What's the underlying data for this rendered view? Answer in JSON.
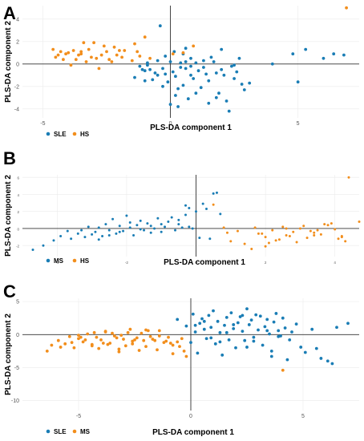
{
  "colors": {
    "blue": "#1a7db5",
    "orange": "#f28e1c"
  },
  "chart_data": [
    {
      "type": "scatter",
      "panel_label": "A",
      "xlabel": "PLS-DA component 1",
      "ylabel": "PLS-DA component 2",
      "xlim": [
        -5.8,
        7.4
      ],
      "ylim": [
        -4.8,
        5.2
      ],
      "xticks": [
        -5,
        0,
        5
      ],
      "yticks": [
        -4,
        -2,
        0,
        2,
        4
      ],
      "grid": true,
      "legend_position": "bottom-left",
      "series": [
        {
          "name": "SLE",
          "color": "#1a7db5",
          "x": [
            -1.4,
            -1.2,
            -1.0,
            -0.8,
            -0.7,
            -0.6,
            -0.5,
            -0.5,
            -0.4,
            -0.3,
            -0.2,
            -0.1,
            0.0,
            0.1,
            0.15,
            0.2,
            0.3,
            0.4,
            0.5,
            0.6,
            0.7,
            0.8,
            0.9,
            1.0,
            1.1,
            1.2,
            1.3,
            1.4,
            1.5,
            1.6,
            1.7,
            1.8,
            1.9,
            2.0,
            2.1,
            2.2,
            2.3,
            2.4,
            2.5,
            2.6,
            2.7,
            2.8,
            1.0,
            1.5,
            2.0,
            2.5,
            0.5,
            0.3,
            -0.2,
            0.4,
            0.6,
            0.8,
            -1.0,
            -0.9,
            -1.1,
            3.1,
            4.0,
            4.8,
            5.0,
            5.3,
            6.0,
            6.4,
            6.8,
            -0.9,
            0.6,
            1.8,
            -0.3,
            0.2,
            1.3,
            2.9,
            0.0,
            0.8
          ],
          "y": [
            -1.2,
            -0.2,
            -0.6,
            -0.5,
            -1.4,
            -0.8,
            0.3,
            -1.0,
            3.4,
            -0.4,
            0.7,
            -1.6,
            0.2,
            -0.7,
            1.1,
            -1.1,
            -3.8,
            -0.3,
            -1.9,
            0.2,
            -3.1,
            0.5,
            -1.3,
            0.1,
            -0.6,
            -2.1,
            0.3,
            -0.9,
            -1.5,
            0.6,
            0.2,
            -0.8,
            -2.6,
            1.3,
            -1.0,
            -3.3,
            -4.2,
            -0.2,
            -0.1,
            -0.7,
            0.5,
            -1.8,
            -2.6,
            -3.5,
            -0.5,
            -1.3,
            0.9,
            -2.2,
            -0.9,
            0.1,
            1.4,
            -0.2,
            -1.5,
            -0.1,
            -0.5,
            -1.7,
            0.0,
            0.9,
            -1.6,
            1.3,
            0.5,
            0.9,
            0.8,
            0.1,
            -0.4,
            -3.0,
            -2.0,
            -2.8,
            -0.3,
            -2.3,
            -3.6,
            -1.0
          ]
        },
        {
          "name": "HS",
          "color": "#f28e1c",
          "x": [
            -4.6,
            -4.5,
            -4.3,
            -4.2,
            -4.1,
            -4.0,
            -3.9,
            -3.8,
            -3.7,
            -3.6,
            -3.5,
            -3.4,
            -3.3,
            -3.2,
            -3.1,
            -3.0,
            -2.9,
            -2.8,
            -2.7,
            -2.6,
            -2.5,
            -2.4,
            -2.3,
            -2.2,
            -2.1,
            -2.0,
            -1.9,
            -1.8,
            -1.5,
            -1.4,
            -1.3,
            -1.2,
            -1.0,
            0.1,
            0.5,
            0.9,
            -0.8,
            -3.5,
            -4.4,
            6.9
          ],
          "y": [
            1.3,
            0.6,
            1.1,
            0.4,
            0.9,
            1.0,
            -0.1,
            1.2,
            0.4,
            0.8,
            1.1,
            1.9,
            0.2,
            1.3,
            0.6,
            1.9,
            0.5,
            -0.4,
            0.8,
            1.6,
            1.1,
            0.4,
            0.2,
            1.5,
            0.8,
            1.2,
            0.6,
            1.2,
            0.3,
            1.8,
            1.1,
            0.7,
            2.4,
            0.9,
            1.0,
            1.6,
            0.5,
            0.9,
            0.8,
            5.0
          ]
        }
      ]
    },
    {
      "type": "scatter",
      "panel_label": "B",
      "xlabel": "PLS-DA component 1",
      "ylabel": "PLS-DA component 2",
      "xlim": [
        -5.0,
        4.7
      ],
      "ylim": [
        -3.3,
        6.3
      ],
      "xticks": [
        -4,
        -2,
        0,
        2,
        4
      ],
      "yticks": [
        -2,
        0,
        2,
        4,
        6
      ],
      "grid": true,
      "legend_position": "bottom-left",
      "series": [
        {
          "name": "MS",
          "color": "#1a7db5",
          "x": [
            -4.7,
            -4.4,
            -4.1,
            -3.9,
            -3.7,
            -3.6,
            -3.4,
            -3.3,
            -3.2,
            -3.1,
            -3.0,
            -2.9,
            -2.8,
            -2.7,
            -2.6,
            -2.5,
            -2.4,
            -2.3,
            -2.2,
            -2.1,
            -2.0,
            -1.9,
            -1.8,
            -1.7,
            -1.6,
            -1.5,
            -1.4,
            -1.3,
            -1.2,
            -1.1,
            -1.0,
            -0.9,
            -0.8,
            -0.7,
            -0.6,
            -0.5,
            -0.4,
            -0.3,
            -0.2,
            -0.1,
            0.0,
            0.1,
            0.2,
            0.3,
            0.4,
            0.5,
            0.6,
            0.7,
            -0.5,
            -0.3,
            -2.2,
            -1.9,
            -1.0,
            -0.2,
            -2.8,
            -2.5,
            -1.6,
            -1.3
          ],
          "y": [
            -2.5,
            -2.0,
            -1.4,
            -0.9,
            -0.3,
            -1.2,
            -0.6,
            -0.2,
            -1.0,
            0.2,
            -0.7,
            -0.4,
            0.1,
            -0.9,
            0.5,
            -0.2,
            1.1,
            -0.6,
            0.3,
            -0.3,
            1.5,
            0.1,
            -0.8,
            0.4,
            0.9,
            -0.2,
            0.6,
            -0.5,
            0.0,
            1.2,
            -0.4,
            0.2,
            0.8,
            1.3,
            -0.2,
            0.5,
            0.1,
            1.6,
            2.4,
            0.0,
            2.0,
            -1.1,
            2.9,
            2.3,
            -1.2,
            4.1,
            4.2,
            1.7,
            1.0,
            2.7,
            -0.4,
            0.7,
            0.5,
            0.2,
            -1.3,
            -0.8,
            -0.1,
            0.3
          ]
        },
        {
          "name": "HS",
          "color": "#f28e1c",
          "x": [
            0.5,
            0.8,
            1.0,
            1.2,
            1.4,
            1.6,
            1.8,
            2.0,
            2.2,
            2.4,
            2.6,
            2.8,
            3.0,
            3.2,
            3.4,
            3.6,
            3.8,
            4.0,
            4.2,
            4.4,
            2.1,
            2.5,
            2.9,
            3.3,
            3.7,
            4.1,
            1.9,
            2.3,
            2.7,
            3.1,
            3.5,
            3.9,
            4.3,
            2.0,
            2.6,
            3.4,
            4.2,
            4.7,
            0.9,
            1.7
          ],
          "y": [
            2.8,
            0.1,
            -1.5,
            -0.3,
            -1.8,
            -2.4,
            -0.6,
            -1.0,
            -0.2,
            -1.3,
            -0.8,
            -0.4,
            0.0,
            -1.1,
            -0.5,
            -0.7,
            0.4,
            -0.1,
            -0.9,
            6.0,
            -1.7,
            0.2,
            -1.6,
            -0.3,
            0.5,
            -1.2,
            -0.6,
            -1.4,
            -0.9,
            0.3,
            -0.2,
            0.6,
            -1.5,
            -2.1,
            0.0,
            -0.8,
            -1.0,
            0.8,
            -0.5,
            0.1
          ]
        }
      ]
    },
    {
      "type": "scatter",
      "panel_label": "C",
      "xlabel": "PLS-DA component 1",
      "ylabel": "PLS-DA component 2",
      "xlim": [
        -7.5,
        7.5
      ],
      "ylim": [
        -11.5,
        5.5
      ],
      "xticks": [
        -5,
        0,
        5
      ],
      "yticks": [
        -10,
        -5,
        0,
        5
      ],
      "grid": true,
      "legend_position": "bottom-left",
      "series": [
        {
          "name": "SLE",
          "color": "#1a7db5",
          "x": [
            -0.6,
            -0.2,
            0.0,
            0.1,
            0.2,
            0.3,
            0.4,
            0.5,
            0.6,
            0.7,
            0.8,
            0.9,
            1.0,
            1.1,
            1.2,
            1.3,
            1.4,
            1.5,
            1.6,
            1.7,
            1.8,
            1.9,
            2.0,
            2.1,
            2.2,
            2.3,
            2.4,
            2.5,
            2.6,
            2.7,
            2.8,
            2.9,
            3.0,
            3.1,
            3.2,
            3.3,
            3.4,
            3.5,
            3.6,
            3.7,
            3.8,
            3.9,
            4.0,
            4.1,
            4.2,
            4.3,
            4.5,
            4.7,
            4.9,
            5.1,
            5.4,
            5.8,
            6.1,
            6.3,
            6.5,
            7.0,
            0.2,
            1.3,
            2.5,
            3.4,
            4.4,
            5.6,
            0.6,
            1.9,
            2.8,
            3.9,
            0.9,
            2.3,
            3.6,
            1.6
          ],
          "y": [
            2.3,
            1.3,
            -1.2,
            3.1,
            0.4,
            -2.8,
            1.7,
            2.4,
            0.8,
            -0.6,
            2.9,
            1.1,
            3.6,
            -1.4,
            2.0,
            0.3,
            -3.1,
            1.4,
            2.6,
            -0.8,
            3.3,
            0.9,
            -2.0,
            1.8,
            2.7,
            0.5,
            -0.9,
            3.9,
            1.5,
            2.2,
            -0.4,
            3.0,
            0.7,
            2.8,
            -1.6,
            1.2,
            2.3,
            0.1,
            -2.5,
            1.9,
            3.2,
            0.6,
            -0.2,
            2.5,
            1.0,
            -3.8,
            0.4,
            1.6,
            -1.9,
            -2.7,
            0.8,
            -3.6,
            -4.0,
            -4.4,
            1.1,
            1.7,
            1.4,
            -1.1,
            -1.9,
            0.6,
            -0.8,
            -2.1,
            2.0,
            1.5,
            -1.0,
            -0.3,
            -0.5,
            2.9,
            -3.3,
            0.3
          ],
          "_": ""
        },
        {
          "name": "MS",
          "color": "#f28e1c",
          "x": [
            -6.4,
            -6.2,
            -5.9,
            -5.6,
            -5.4,
            -5.2,
            -5.0,
            -4.8,
            -4.6,
            -4.4,
            -4.2,
            -4.0,
            -3.8,
            -3.6,
            -3.4,
            -3.2,
            -3.0,
            -2.8,
            -2.6,
            -2.4,
            -2.2,
            -2.0,
            -1.8,
            -1.6,
            -1.4,
            -1.2,
            -1.0,
            -0.8,
            -0.6,
            -0.4,
            -0.2,
            -5.8,
            -5.0,
            -4.4,
            -3.8,
            -3.2,
            -2.6,
            -2.0,
            -1.4,
            -0.8,
            -4.7,
            -3.9,
            -3.3,
            -2.7,
            -2.3,
            -1.7,
            -1.1,
            -5.3,
            -4.1,
            -3.5,
            -2.9,
            -2.1,
            -1.5,
            -0.5,
            -4.9,
            -4.3,
            -3.7,
            -3.1,
            -2.5,
            -1.9,
            -0.9,
            -0.3,
            4.1
          ],
          "y": [
            -2.5,
            -1.6,
            -0.9,
            -1.4,
            -0.3,
            -2.0,
            -0.6,
            -1.1,
            0.1,
            -1.7,
            -0.4,
            -0.8,
            0.5,
            -1.3,
            -0.2,
            -2.2,
            -0.7,
            0.3,
            -1.0,
            -0.5,
            0.2,
            -1.8,
            -0.3,
            -0.9,
            0.6,
            -1.2,
            -0.4,
            -2.9,
            -1.1,
            -0.6,
            -3.3,
            -1.9,
            -0.1,
            -1.5,
            0.4,
            -2.6,
            -1.4,
            0.7,
            -0.2,
            -1.6,
            -0.8,
            -1.3,
            -0.5,
            0.8,
            -2.4,
            -0.7,
            -1.0,
            -1.2,
            -2.1,
            0.2,
            -1.7,
            -0.9,
            -2.3,
            -1.8,
            -0.4,
            0.3,
            -1.5,
            -0.1,
            -0.8,
            0.6,
            -1.3,
            -2.5,
            -5.4
          ]
        }
      ]
    }
  ]
}
